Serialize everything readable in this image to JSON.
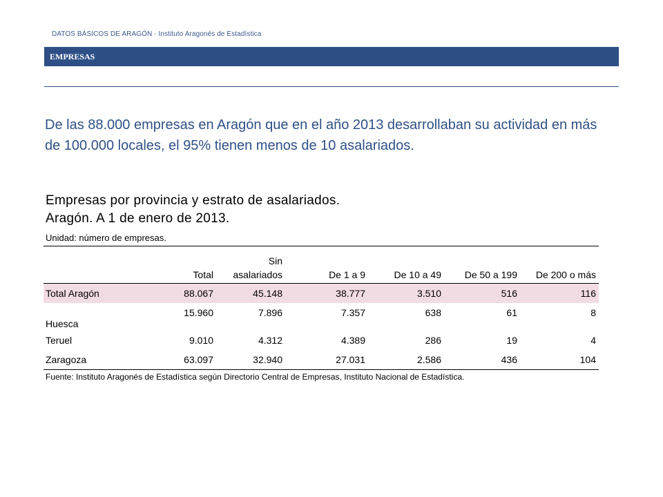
{
  "header": {
    "breadcrumb": "DATOS BÁSICOS DE ARAGÓN  ·  Instituto Aragonés de Estadística",
    "section_title": "EMPRESAS"
  },
  "summary": {
    "text": "De las 88.000 empresas en Aragón que en el año 2013 desarrollaban su actividad en más de 100.000 locales, el 95% tienen menos de 10 asalariados."
  },
  "table": {
    "title_line1": "Empresas por provincia y estrato de asalariados.",
    "title_line2": "Aragón. A 1 de enero de 2013.",
    "unit": "Unidad: número de empresas.",
    "columns": {
      "c0": "",
      "c1": "Total",
      "c2_line1": "Sin",
      "c2_line2": "asalariados",
      "c3": "De 1 a 9",
      "c4": "De 10 a 49",
      "c5": "De 50 a 199",
      "c6": "De 200 o más"
    },
    "rows": [
      {
        "label": "Total Aragón",
        "values": [
          "88.067",
          "45.148",
          "38.777",
          "3.510",
          "516",
          "116"
        ]
      },
      {
        "label": "Huesca",
        "values": [
          "15.960",
          "7.896",
          "7.357",
          "638",
          "61",
          "8"
        ]
      },
      {
        "label": "Teruel",
        "values": [
          "9.010",
          "4.312",
          "4.389",
          "286",
          "19",
          "4"
        ]
      },
      {
        "label": "Zaragoza",
        "values": [
          "63.097",
          "32.940",
          "27.031",
          "2.586",
          "436",
          "104"
        ]
      }
    ],
    "source": "Fuente: Instituto Aragonés de Estadística según Directorio Central de Empresas, Instituto Nacional de Estadística."
  },
  "colors": {
    "banner": "#2e4f86",
    "summary_text": "#2e4f86",
    "total_row_highlight": "#f2dce3"
  }
}
